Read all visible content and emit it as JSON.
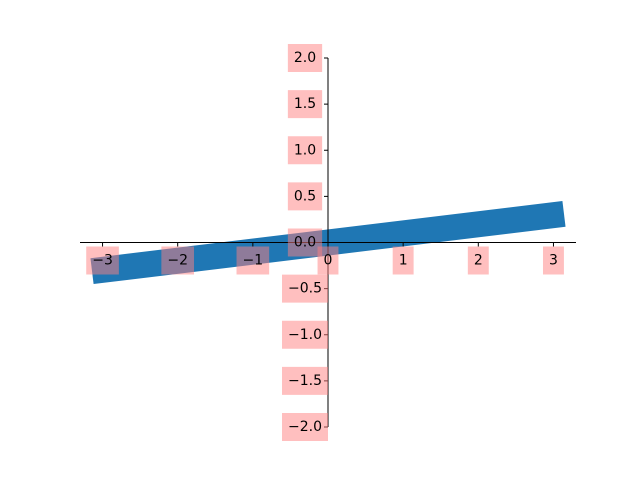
{
  "chart_data": {
    "type": "line",
    "title": "",
    "xlabel": "",
    "ylabel": "",
    "xlim": [
      -3.3,
      3.3
    ],
    "ylim": [
      -2.0,
      2.0
    ],
    "spines": "centered",
    "grid": false,
    "series": [
      {
        "x": [
          -3.14,
          3.14
        ],
        "y": [
          -0.31,
          0.31
        ],
        "color": "#1f77b4"
      }
    ],
    "x_ticks": [
      {
        "value": -3,
        "label": "−3"
      },
      {
        "value": -2,
        "label": "−2"
      },
      {
        "value": -1,
        "label": "−1"
      },
      {
        "value": 0,
        "label": "0"
      },
      {
        "value": 1,
        "label": "1"
      },
      {
        "value": 2,
        "label": "2"
      },
      {
        "value": 3,
        "label": "3"
      }
    ],
    "y_ticks": [
      {
        "value": 2.0,
        "label": "2.0"
      },
      {
        "value": 1.5,
        "label": "1.5"
      },
      {
        "value": 1.0,
        "label": "1.0"
      },
      {
        "value": 0.5,
        "label": "0.5"
      },
      {
        "value": 0.0,
        "label": "0.0"
      },
      {
        "value": -0.5,
        "label": "−0.5"
      },
      {
        "value": -1.0,
        "label": "−1.0"
      },
      {
        "value": -1.5,
        "label": "−1.5"
      },
      {
        "value": -2.0,
        "label": "−2.0"
      }
    ],
    "tick_label_background": "#ff7f7f"
  }
}
